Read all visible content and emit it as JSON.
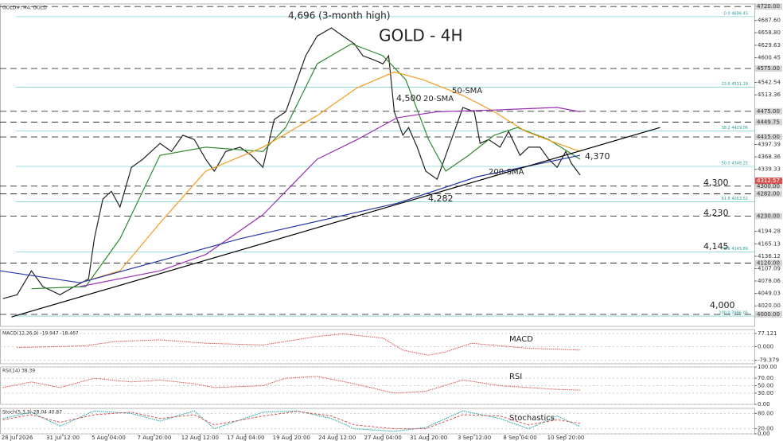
{
  "chart_data": [
    {
      "type": "line",
      "title": "GOLD#, H4:  GOLD",
      "subtitle": "GOLD - 4H",
      "xlim": [
        0,
        264
      ],
      "ylim": [
        3972,
        4726
      ],
      "xticks": [
        {
          "value": 6,
          "label": "28 Jul 2026"
        },
        {
          "value": 22,
          "label": "31 Jul 12:00"
        },
        {
          "value": 38,
          "label": "5 Aug 04:00"
        },
        {
          "value": 54,
          "label": "7 Aug 20:00"
        },
        {
          "value": 70,
          "label": "12 Aug 12:00"
        },
        {
          "value": 86,
          "label": "17 Aug 04:00"
        },
        {
          "value": 102,
          "label": "19 Aug 20:00"
        },
        {
          "value": 118,
          "label": "24 Aug 12:00"
        },
        {
          "value": 134,
          "label": "27 Aug 04:00"
        },
        {
          "value": 150,
          "label": "31 Aug 20:00"
        },
        {
          "value": 166,
          "label": "3 Sep 12:00"
        },
        {
          "value": 182,
          "label": "8 Sep 04:00"
        },
        {
          "value": 198,
          "label": "10 Sep 20:00"
        }
      ],
      "yticks": [
        {
          "value": 4687.6,
          "label": "4687.60"
        },
        {
          "value": 4658.8,
          "label": "4658.80"
        },
        {
          "value": 4629.63,
          "label": "4629.63"
        },
        {
          "value": 4600.45,
          "label": "4600.45"
        },
        {
          "value": 4542.54,
          "label": "4542.54"
        },
        {
          "value": 4513.36,
          "label": "4513.36"
        },
        {
          "value": 4397.39,
          "label": "4397.39"
        },
        {
          "value": 4368.36,
          "label": "4368.36"
        },
        {
          "value": 4339.33,
          "label": "4339.33"
        },
        {
          "value": 4194.28,
          "label": "4194.28"
        },
        {
          "value": 4165.13,
          "label": "4165.13"
        },
        {
          "value": 4136.12,
          "label": "4136.12"
        },
        {
          "value": 4107.09,
          "label": "4107.09"
        },
        {
          "value": 4078.06,
          "label": "4078.06"
        },
        {
          "value": 4049.03,
          "label": "4049.03"
        },
        {
          "value": 4020,
          "label": "4020.00"
        }
      ],
      "levels": [
        {
          "value": 4720,
          "label": "4720.00"
        },
        {
          "value": 4575,
          "label": "4575.00"
        },
        {
          "value": 4475,
          "label": "4475.00"
        },
        {
          "value": 4449.75,
          "label": "4449.75"
        },
        {
          "value": 4415,
          "label": "4415.00"
        },
        {
          "value": 4300,
          "label": "4300.00"
        },
        {
          "value": 4282,
          "label": "4282.00"
        },
        {
          "value": 4230,
          "label": "4230.00"
        },
        {
          "value": 4120,
          "label": "4120.00"
        },
        {
          "value": 4000,
          "label": "4000.00"
        }
      ],
      "current": {
        "value": 4312.57,
        "label": "4312.57"
      },
      "fib": [
        {
          "value": 4696.45,
          "label": "0.0 4696.45"
        },
        {
          "value": 4531.29,
          "label": "23.6 4531.29"
        },
        {
          "value": 4429.06,
          "label": "38.2 4429.06"
        },
        {
          "value": 4346.25,
          "label": "50.0 4346.25"
        },
        {
          "value": 4263.52,
          "label": "61.8 4263.52"
        },
        {
          "value": 4145.89,
          "label": "78.6 4145.89"
        },
        {
          "value": 3996.05,
          "label": "100.0 3996.05"
        }
      ],
      "annotations": [
        "4,696 (3-month high)",
        "4,500",
        "20-SMA",
        "50-SMA",
        "200-SMA",
        "4,370",
        "4,300",
        "4,282",
        "4,230",
        "4,145",
        "4,000"
      ],
      "series": [
        {
          "color": "#222222",
          "x": [
            1,
            6,
            11,
            15,
            21,
            26,
            31,
            33,
            36,
            39,
            42,
            46,
            50,
            56,
            60,
            64,
            68,
            72,
            75,
            79,
            84,
            88,
            92,
            96,
            100,
            104,
            107,
            111,
            116,
            120,
            124,
            127,
            131,
            134,
            136,
            138,
            141,
            143,
            146,
            149,
            153,
            156,
            159,
            162,
            166,
            168,
            171,
            175,
            178,
            182,
            185,
            189,
            192,
            195,
            198,
            200,
            203
          ],
          "values": [
            4037,
            4046,
            4102,
            4065,
            4046,
            4065,
            4083,
            4177,
            4270,
            4288,
            4251,
            4344,
            4363,
            4400,
            4381,
            4419,
            4409,
            4363,
            4335,
            4381,
            4391,
            4372,
            4344,
            4456,
            4474,
            4549,
            4605,
            4651,
            4670,
            4651,
            4633,
            4605,
            4595,
            4586,
            4605,
            4474,
            4419,
            4437,
            4391,
            4335,
            4316,
            4372,
            4428,
            4484,
            4474,
            4400,
            4409,
            4391,
            4428,
            4372,
            4391,
            4391,
            4363,
            4344,
            4381,
            4353,
            4326
          ]
        },
        {
          "color": "#2e8b2e",
          "x": [
            11,
            30,
            42,
            56,
            72,
            92,
            100,
            111,
            123,
            134,
            142,
            150,
            156,
            164,
            173,
            181,
            192,
            203
          ],
          "values": [
            4060,
            4065,
            4177,
            4372,
            4391,
            4381,
            4437,
            4586,
            4633,
            4605,
            4549,
            4409,
            4335,
            4372,
            4419,
            4437,
            4409,
            4363
          ]
        },
        {
          "color": "#f39c1f",
          "x": [
            28,
            42,
            56,
            72,
            92,
            111,
            125,
            138,
            148,
            162,
            173,
            184,
            195,
            203
          ],
          "values": [
            4074,
            4102,
            4214,
            4335,
            4391,
            4465,
            4530,
            4567,
            4549,
            4512,
            4474,
            4428,
            4400,
            4381
          ]
        },
        {
          "color": "#9b30b5",
          "x": [
            28,
            56,
            72,
            92,
            111,
            125,
            139,
            153,
            173,
            195,
            203
          ],
          "values": [
            4065,
            4102,
            4140,
            4233,
            4363,
            4409,
            4460,
            4474,
            4478,
            4484,
            4474
          ]
        },
        {
          "color": "#2438a8",
          "x": [
            0,
            28,
            84,
            139,
            167,
            203
          ],
          "values": [
            4102,
            4074,
            4177,
            4260,
            4322,
            4372
          ]
        },
        {
          "color": "#000000",
          "x": [
            4,
            231
          ],
          "values": [
            3994,
            4437
          ]
        }
      ]
    },
    {
      "type": "line",
      "title": "MACD(12,26,9) -19.947 -18.467",
      "label": "MACD",
      "ylim": [
        -100,
        100
      ],
      "yticks": [
        {
          "value": 77.121,
          "label": "77.121"
        },
        {
          "value": 0,
          "label": "0.000"
        },
        {
          "value": -79.379,
          "label": "-79.379"
        }
      ],
      "series": [
        {
          "color": "#d9534f",
          "x": [
            6,
            30,
            40,
            56,
            72,
            92,
            111,
            120,
            134,
            141,
            150,
            156,
            165,
            175,
            185,
            195,
            203
          ],
          "values": [
            -5,
            5,
            30,
            40,
            20,
            10,
            60,
            75,
            50,
            -20,
            -50,
            -30,
            20,
            5,
            -10,
            -15,
            -19.947
          ]
        }
      ]
    },
    {
      "type": "line",
      "title": "RSI(14) 38.39",
      "label": "RSI",
      "ylim": [
        0,
        100
      ],
      "yticks": [
        {
          "value": 100,
          "label": "100.00"
        },
        {
          "value": 70,
          "label": "70.00"
        },
        {
          "value": 50,
          "label": "50.00"
        },
        {
          "value": 30,
          "label": "30.00"
        },
        {
          "value": 0,
          "label": "0.00"
        }
      ],
      "series": [
        {
          "color": "#d9534f",
          "x": [
            1,
            11,
            21,
            33,
            39,
            46,
            56,
            68,
            75,
            92,
            100,
            111,
            124,
            138,
            149,
            162,
            175,
            185,
            195,
            203
          ],
          "values": [
            45,
            60,
            45,
            70,
            65,
            60,
            65,
            55,
            45,
            50,
            70,
            75,
            55,
            30,
            35,
            65,
            50,
            45,
            40,
            38.39
          ]
        }
      ]
    },
    {
      "type": "line",
      "title": "Stoch(5,3,3) 28.04 40.87",
      "label": "Stochastics",
      "ylim": [
        0,
        100
      ],
      "yticks": [
        {
          "value": 80,
          "label": "80.00"
        },
        {
          "value": 20,
          "label": "20.00"
        },
        {
          "value": 0,
          "label": "0.00"
        }
      ],
      "series": [
        {
          "color": "#1aa3a3",
          "x": [
            1,
            11,
            21,
            33,
            46,
            56,
            68,
            75,
            92,
            104,
            116,
            124,
            138,
            149,
            162,
            175,
            185,
            195,
            203
          ],
          "values": [
            60,
            85,
            30,
            90,
            80,
            50,
            90,
            20,
            85,
            90,
            60,
            20,
            10,
            25,
            90,
            60,
            20,
            70,
            28.04
          ]
        },
        {
          "color": "#d9534f",
          "x": [
            1,
            11,
            21,
            33,
            46,
            56,
            68,
            75,
            92,
            104,
            116,
            124,
            138,
            149,
            162,
            175,
            185,
            195,
            203
          ],
          "values": [
            55,
            75,
            45,
            75,
            85,
            60,
            75,
            35,
            70,
            88,
            70,
            35,
            20,
            20,
            75,
            70,
            35,
            55,
            40.87
          ]
        }
      ]
    }
  ]
}
